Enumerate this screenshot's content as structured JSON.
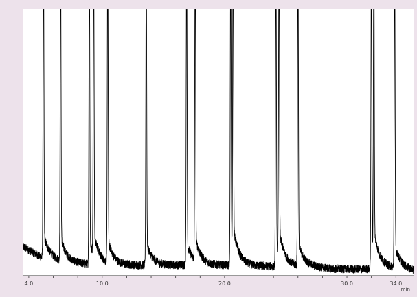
{
  "colors": {
    "background": "#ede2eb",
    "plot_area": "#ffffff",
    "trace": "#000000",
    "axis": "#333333"
  },
  "chart_data": {
    "type": "line",
    "title": "",
    "xlabel": "min",
    "ylabel": "",
    "grid": false,
    "legend": "none",
    "xlim": [
      3.5,
      35.5
    ],
    "ylim": [
      0,
      100
    ],
    "x_ticks": [
      {
        "value": 4.0,
        "label": "4.0"
      },
      {
        "value": 10.0,
        "label": "10.0"
      },
      {
        "value": 20.0,
        "label": "20.0"
      },
      {
        "value": 30.0,
        "label": "30.0"
      },
      {
        "value": 34.0,
        "label": "34.0"
      }
    ],
    "baseline": [
      [
        3.5,
        11
      ],
      [
        5.0,
        7
      ],
      [
        7.0,
        5
      ],
      [
        10.0,
        4
      ],
      [
        14.0,
        4
      ],
      [
        20.0,
        4
      ],
      [
        24.0,
        3.5
      ],
      [
        27.0,
        3.5
      ],
      [
        29.0,
        2.5
      ],
      [
        31.5,
        2.5
      ],
      [
        33.5,
        3
      ],
      [
        35.5,
        2
      ]
    ],
    "peaks": [
      {
        "x": 5.2,
        "height": 120
      },
      {
        "x": 6.6,
        "height": 120
      },
      {
        "x": 8.95,
        "height": 120
      },
      {
        "x": 9.3,
        "height": 120
      },
      {
        "x": 10.45,
        "height": 120
      },
      {
        "x": 13.6,
        "height": 120
      },
      {
        "x": 16.9,
        "height": 120
      },
      {
        "x": 17.6,
        "height": 120
      },
      {
        "x": 20.5,
        "height": 120
      },
      {
        "x": 20.7,
        "height": 120
      },
      {
        "x": 24.2,
        "height": 120
      },
      {
        "x": 24.45,
        "height": 120
      },
      {
        "x": 26.0,
        "height": 120
      },
      {
        "x": 32.0,
        "height": 120
      },
      {
        "x": 32.2,
        "height": 120
      },
      {
        "x": 33.9,
        "height": 120
      }
    ],
    "series": [
      {
        "values_source": "baseline+peaks"
      }
    ]
  }
}
